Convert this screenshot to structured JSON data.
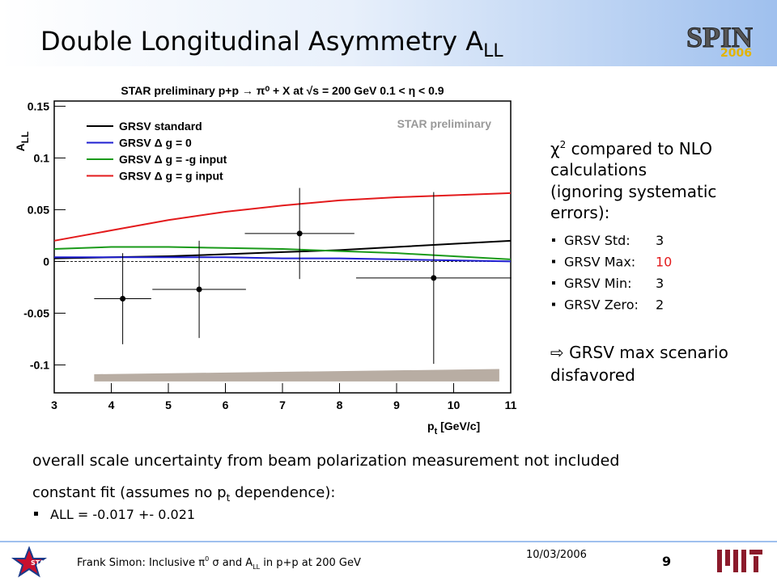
{
  "slide": {
    "title": "Double Longitudinal Asymmetry A",
    "title_sub": "LL",
    "logo": "SPIN",
    "logo_year": "2006"
  },
  "chart_data": {
    "type": "line",
    "title": "STAR preliminary p+p → π⁰ + X at √s = 200 GeV 0.1 < η < 0.9",
    "annotation": "STAR preliminary",
    "y_label": {
      "main": "A",
      "sub": "LL"
    },
    "x_label": {
      "main": "p",
      "sub": "t",
      "rest": " [GeV/c]"
    },
    "x": [
      3,
      4,
      5,
      6,
      7,
      8,
      9,
      10,
      11
    ],
    "series": [
      {
        "name": "GRSV standard",
        "color": "#000000",
        "values": [
          0.003,
          0.004,
          0.005,
          0.007,
          0.009,
          0.011,
          0.014,
          0.017,
          0.02
        ]
      },
      {
        "name": "GRSV Δ g = 0",
        "color": "#1f1fd0",
        "values": [
          0.004,
          0.004,
          0.004,
          0.004,
          0.003,
          0.003,
          0.002,
          0.001,
          0.0
        ]
      },
      {
        "name": "GRSV Δ g = -g input",
        "color": "#1a9a1a",
        "values": [
          0.012,
          0.014,
          0.014,
          0.013,
          0.012,
          0.01,
          0.008,
          0.005,
          0.002
        ]
      },
      {
        "name": "GRSV Δ g = g input",
        "color": "#e31a1c",
        "values": [
          0.02,
          0.03,
          0.04,
          0.048,
          0.054,
          0.059,
          0.062,
          0.064,
          0.066
        ]
      }
    ],
    "points": {
      "x": [
        4.2,
        5.54,
        7.3,
        9.65
      ],
      "y": [
        -0.036,
        -0.027,
        0.027,
        -0.016
      ],
      "xerr": [
        0.5,
        0.82,
        0.96,
        1.36
      ],
      "yerr": [
        0.044,
        0.047,
        0.044,
        0.083
      ],
      "color": "#000000"
    },
    "band": {
      "x": [
        3.7,
        10.8
      ],
      "low": [
        -0.116,
        -0.116
      ],
      "high": [
        -0.109,
        -0.104
      ],
      "color": "#b8ada3"
    },
    "xlim": [
      3,
      11
    ],
    "ylim": [
      -0.127,
      0.155
    ],
    "xticks": [
      3,
      4,
      5,
      6,
      7,
      8,
      9,
      10,
      11
    ],
    "yticks": [
      -0.1,
      -0.05,
      0,
      0.05,
      0.1,
      0.15
    ],
    "legend": "top-left"
  },
  "panel": {
    "chi_symbol": "χ",
    "chi_sup": "2",
    "lines": [
      "compared to NLO",
      "calculations",
      "(ignoring systematic",
      "errors):"
    ],
    "items": [
      {
        "label": "GRSV Std:",
        "value": 3
      },
      {
        "label": "GRSV Max:",
        "value": 10
      },
      {
        "label": "GRSV Min:",
        "value": 3
      },
      {
        "label": "GRSV Zero:",
        "value": 2
      }
    ],
    "conclusion": [
      "GRSV max scenario",
      "disfavored"
    ]
  },
  "notes": {
    "scale": "overall scale uncertainty from beam polarization measurement not included",
    "fit": [
      "constant fit (assumes no p",
      "t",
      " dependence):"
    ],
    "fit_result": "ALL = -0.017 +- 0.021"
  },
  "footer": {
    "parts": [
      "Frank Simon: Inclusive π",
      "0",
      " σ and A",
      "LL",
      " in p+p at 200 GeV"
    ],
    "date": "10/03/2006",
    "page": "9",
    "left_logo": "STAR"
  }
}
